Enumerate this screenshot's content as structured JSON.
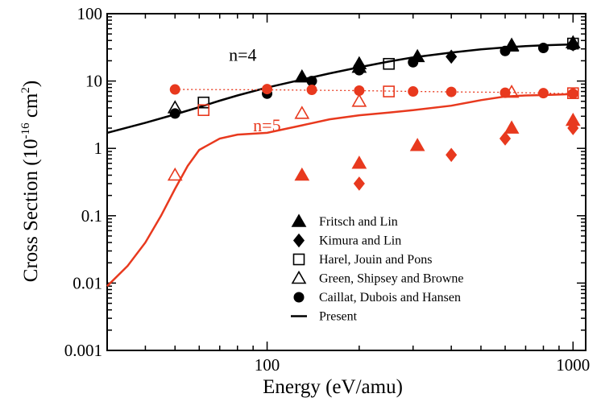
{
  "chart_data": {
    "type": "scatter",
    "xlabel": "Energy (eV/amu)",
    "ylabel_main": "Cross Section (10",
    "ylabel_exp": "-16",
    "ylabel_unit": " cm",
    "ylabel_unit_exp": "2",
    "ylabel_close": ")",
    "xscale": "log",
    "yscale": "log",
    "xlim": [
      30,
      1100
    ],
    "ylim": [
      0.001,
      100
    ],
    "xticks": [
      {
        "value": 100,
        "label": "100"
      },
      {
        "value": 1000,
        "label": "1000"
      }
    ],
    "yticks": [
      {
        "value": 0.001,
        "label": "0.001"
      },
      {
        "value": 0.01,
        "label": "0.01"
      },
      {
        "value": 0.1,
        "label": "0.1"
      },
      {
        "value": 1,
        "label": "1"
      },
      {
        "value": 10,
        "label": "10"
      },
      {
        "value": 100,
        "label": "100"
      }
    ],
    "colors": {
      "n4": "#000000",
      "n5": "#e8391e"
    },
    "annotations": [
      {
        "text": "n=4",
        "x": 75,
        "y": 20,
        "color": "n4"
      },
      {
        "text": "n=5",
        "x": 90,
        "y": 1.8,
        "color": "n5"
      }
    ],
    "series": [
      {
        "name": "Present (n=4)",
        "kind": "line",
        "color": "n4",
        "x": [
          30,
          40,
          50,
          60,
          70,
          80,
          100,
          130,
          160,
          200,
          250,
          300,
          400,
          500,
          600,
          700,
          800,
          900,
          1000
        ],
        "y": [
          1.7,
          2.4,
          3.2,
          4.1,
          5.1,
          6.1,
          8.0,
          10.5,
          13,
          16,
          19.5,
          22.5,
          26.5,
          29.5,
          31.5,
          33,
          34,
          34.5,
          35
        ]
      },
      {
        "name": "Present (n=5)",
        "kind": "line",
        "color": "n5",
        "x": [
          30,
          35,
          40,
          45,
          50,
          55,
          60,
          70,
          80,
          100,
          130,
          160,
          200,
          250,
          300,
          400,
          500,
          600,
          700,
          800,
          900,
          1000
        ],
        "y": [
          0.009,
          0.018,
          0.04,
          0.1,
          0.25,
          0.55,
          0.95,
          1.4,
          1.6,
          1.7,
          2.2,
          2.7,
          3.1,
          3.4,
          3.7,
          4.3,
          5.2,
          5.9,
          6.1,
          6.2,
          6.3,
          6.4
        ]
      },
      {
        "name": "Caillat dotted (n=5)",
        "kind": "dotted",
        "color": "n5",
        "x": [
          50,
          100,
          140,
          200,
          300,
          400,
          600,
          800,
          1000
        ],
        "y": [
          7.5,
          7.4,
          7.3,
          7.2,
          7.0,
          6.9,
          6.8,
          6.6,
          6.5
        ]
      },
      {
        "name": "Fritsch and Lin n=4",
        "marker": "triangle-filled",
        "color": "n4",
        "x": [
          130,
          200,
          310,
          630,
          1000
        ],
        "y": [
          11.5,
          18,
          23,
          34,
          37
        ]
      },
      {
        "name": "Fritsch and Lin n=5",
        "marker": "triangle-filled",
        "color": "n5",
        "x": [
          130,
          200,
          310,
          630,
          1000
        ],
        "y": [
          0.4,
          0.6,
          1.1,
          2.0,
          2.6
        ]
      },
      {
        "name": "Kimura and Lin n=4",
        "marker": "diamond-filled",
        "color": "n4",
        "x": [
          200,
          400,
          1000
        ],
        "y": [
          17,
          23,
          35
        ]
      },
      {
        "name": "Kimura and Lin n=5",
        "marker": "diamond-filled",
        "color": "n5",
        "x": [
          200,
          400,
          600,
          1000
        ],
        "y": [
          0.3,
          0.8,
          1.4,
          2.0
        ]
      },
      {
        "name": "Harel, Jouin and Pons n=4",
        "marker": "square-open",
        "color": "n4",
        "x": [
          62,
          250,
          1000
        ],
        "y": [
          4.8,
          18,
          36
        ]
      },
      {
        "name": "Harel, Jouin and Pons n=5",
        "marker": "square-open",
        "color": "n5",
        "x": [
          62,
          250,
          1000
        ],
        "y": [
          3.7,
          7.0,
          6.6
        ]
      },
      {
        "name": "Green, Shipsey and Browne n=4",
        "marker": "triangle-open",
        "color": "n4",
        "x": [
          50,
          200,
          630
        ],
        "y": [
          4.0,
          16,
          33
        ]
      },
      {
        "name": "Green, Shipsey and Browne n=5",
        "marker": "triangle-open",
        "color": "n5",
        "x": [
          50,
          130,
          200,
          630
        ],
        "y": [
          0.4,
          3.3,
          5.0,
          6.8
        ]
      },
      {
        "name": "Caillat, Dubois and Hansen n=4",
        "marker": "circle-filled",
        "color": "n4",
        "x": [
          50,
          100,
          140,
          200,
          300,
          600,
          800,
          1000
        ],
        "y": [
          3.3,
          6.5,
          10,
          14.5,
          19,
          28,
          31,
          34
        ]
      },
      {
        "name": "Caillat, Dubois and Hansen n=5",
        "marker": "circle-filled",
        "color": "n5",
        "x": [
          50,
          100,
          140,
          200,
          300,
          400,
          600,
          800,
          1000
        ],
        "y": [
          7.5,
          7.6,
          7.4,
          7.2,
          7.0,
          6.9,
          6.7,
          6.6,
          6.5
        ]
      }
    ],
    "legend": {
      "position": "lower-right",
      "entries": [
        {
          "label": "Fritsch and Lin",
          "marker": "triangle-filled"
        },
        {
          "label": "Kimura and Lin",
          "marker": "diamond-filled"
        },
        {
          "label": "Harel, Jouin and Pons",
          "marker": "square-open"
        },
        {
          "label": "Green, Shipsey and Browne",
          "marker": "triangle-open"
        },
        {
          "label": "Caillat, Dubois and Hansen",
          "marker": "circle-filled"
        },
        {
          "label": "Present",
          "marker": "line"
        }
      ]
    }
  }
}
